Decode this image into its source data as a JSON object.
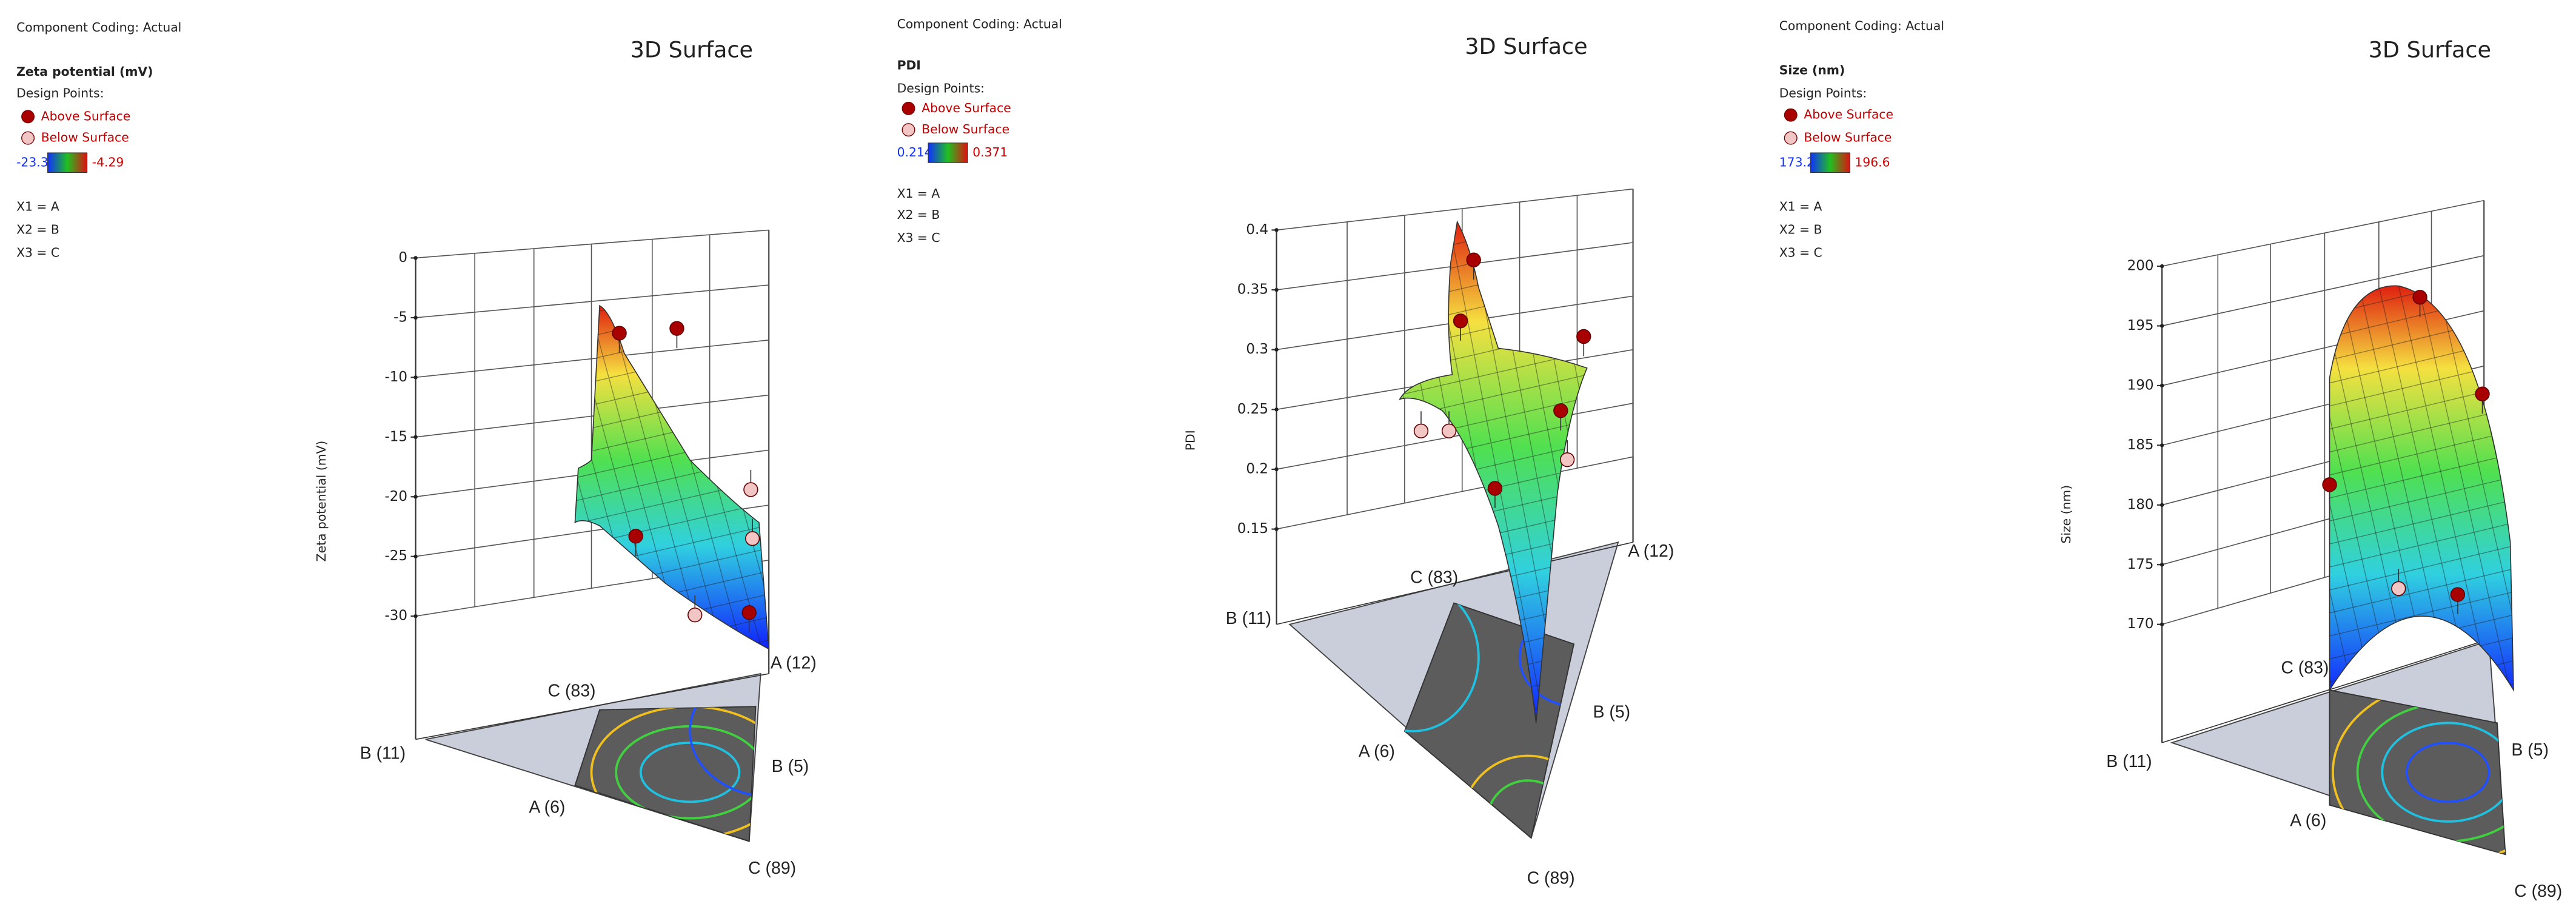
{
  "chart_data": [
    {
      "type": "surface3d",
      "coding": "Component Coding: Actual",
      "title": "3D Surface",
      "response": "Zeta potential (mV)",
      "design_points_label": "Design Points:",
      "series": [
        {
          "name": "Above Surface",
          "color": "#a80000",
          "values": [
            -6.3,
            -5.9,
            -23.3,
            -29.7
          ]
        },
        {
          "name": "Below Surface",
          "color": "#f3c6c6",
          "values": [
            -19.4,
            -23.5,
            -29.9
          ]
        }
      ],
      "colorbar": [
        -23.3,
        -4.29
      ],
      "components": [
        "X1 = A",
        "X2 = B",
        "X3 = C"
      ],
      "zlabel": "Zeta potential (mV)",
      "zlim": [
        -30,
        0
      ],
      "zticks": [
        0,
        -5,
        -10,
        -15,
        -20,
        -25,
        -30
      ],
      "corner_labels": [
        "B (11)",
        "A (12)",
        "C (89)",
        "C (83)",
        "A (6)",
        "B (5)"
      ]
    },
    {
      "type": "surface3d",
      "coding": "Component Coding: Actual",
      "title": "3D Surface",
      "response": "PDI",
      "design_points_label": "Design Points:",
      "series": [
        {
          "name": "Above Surface",
          "color": "#a80000",
          "values": [
            0.375,
            0.324,
            0.311,
            0.249,
            0.184
          ]
        },
        {
          "name": "Below Surface",
          "color": "#f3c6c6",
          "values": [
            0.232,
            0.232,
            0.208
          ]
        }
      ],
      "colorbar": [
        0.214,
        0.371
      ],
      "components": [
        "X1 = A",
        "X2 = B",
        "X3 = C"
      ],
      "zlabel": "PDI",
      "zlim": [
        0.15,
        0.4
      ],
      "zticks": [
        0.4,
        0.35,
        0.3,
        0.25,
        0.2,
        0.15
      ],
      "corner_labels": [
        "B (11)",
        "A (12)",
        "C (89)",
        "C (83)",
        "A (6)",
        "B (5)"
      ]
    },
    {
      "type": "surface3d",
      "coding": "Component Coding: Actual",
      "title": "3D Surface",
      "response": "Size (nm)",
      "design_points_label": "Design Points:",
      "series": [
        {
          "name": "Above Surface",
          "color": "#a80000",
          "values": [
            197.4,
            189.3,
            181.7,
            172.5
          ]
        },
        {
          "name": "Below Surface",
          "color": "#f3c6c6",
          "values": [
            173.0
          ]
        }
      ],
      "colorbar": [
        173.2,
        196.6
      ],
      "components": [
        "X1 = A",
        "X2 = B",
        "X3 = C"
      ],
      "zlabel": "Size (nm)",
      "zlim": [
        170,
        200
      ],
      "zticks": [
        200,
        195,
        190,
        185,
        180,
        175,
        170
      ],
      "corner_labels": [
        "B (11)",
        "A (12)",
        "C (89)",
        "C (83)",
        "A (6)",
        "B (5)"
      ]
    }
  ]
}
